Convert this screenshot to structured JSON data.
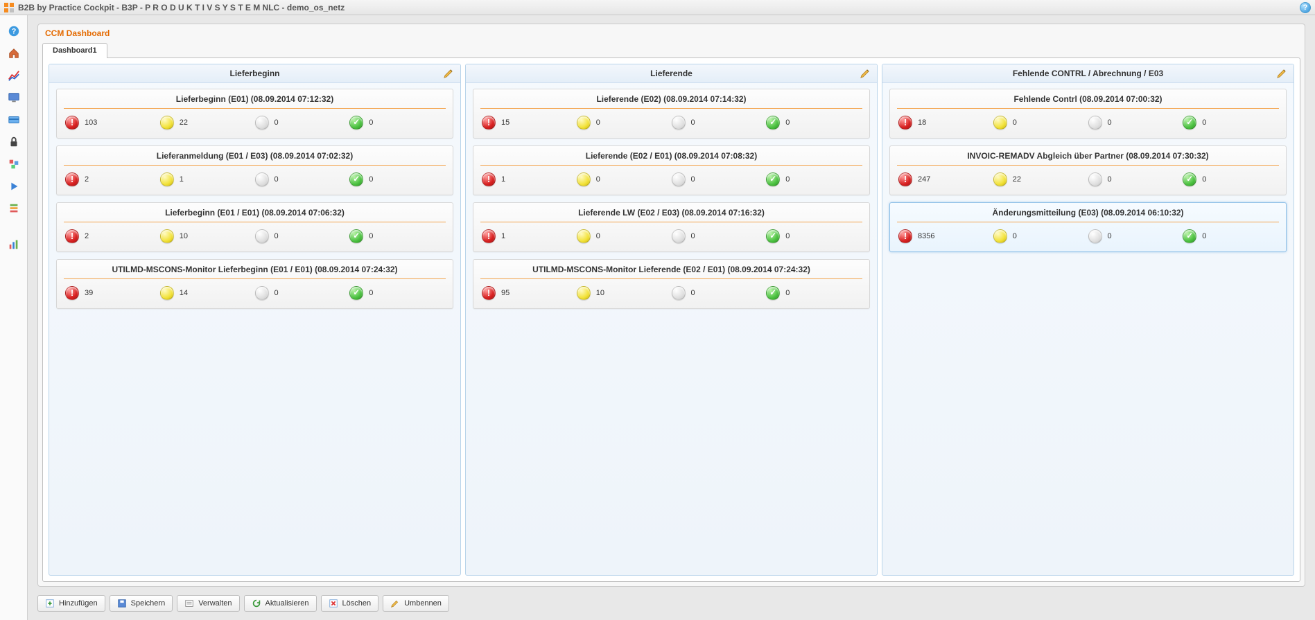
{
  "app_title": "B2B by Practice Cockpit - B3P - P R O D U K T I V S Y S T E M  NLC - demo_os_netz",
  "panel_title": "CCM Dashboard",
  "tab_label": "Dashboard1",
  "columns": [
    {
      "title": "Lieferbeginn",
      "cards": [
        {
          "title": "Lieferbeginn (E01) (08.09.2014 07:12:32)",
          "red": 103,
          "yellow": 22,
          "gray": 0,
          "green": 0,
          "selected": false
        },
        {
          "title": "Lieferanmeldung (E01 / E03) (08.09.2014 07:02:32)",
          "red": 2,
          "yellow": 1,
          "gray": 0,
          "green": 0,
          "selected": false
        },
        {
          "title": "Lieferbeginn (E01 / E01) (08.09.2014 07:06:32)",
          "red": 2,
          "yellow": 10,
          "gray": 0,
          "green": 0,
          "selected": false
        },
        {
          "title": "UTILMD-MSCONS-Monitor Lieferbeginn (E01 / E01) (08.09.2014 07:24:32)",
          "red": 39,
          "yellow": 14,
          "gray": 0,
          "green": 0,
          "selected": false
        }
      ]
    },
    {
      "title": "Lieferende",
      "cards": [
        {
          "title": "Lieferende (E02) (08.09.2014 07:14:32)",
          "red": 15,
          "yellow": 0,
          "gray": 0,
          "green": 0,
          "selected": false
        },
        {
          "title": "Lieferende (E02 / E01) (08.09.2014 07:08:32)",
          "red": 1,
          "yellow": 0,
          "gray": 0,
          "green": 0,
          "selected": false
        },
        {
          "title": "Lieferende LW (E02 / E03) (08.09.2014 07:16:32)",
          "red": 1,
          "yellow": 0,
          "gray": 0,
          "green": 0,
          "selected": false
        },
        {
          "title": "UTILMD-MSCONS-Monitor Lieferende (E02 / E01) (08.09.2014 07:24:32)",
          "red": 95,
          "yellow": 10,
          "gray": 0,
          "green": 0,
          "selected": false
        }
      ]
    },
    {
      "title": "Fehlende CONTRL / Abrechnung / E03",
      "cards": [
        {
          "title": "Fehlende Contrl (08.09.2014 07:00:32)",
          "red": 18,
          "yellow": 0,
          "gray": 0,
          "green": 0,
          "selected": false
        },
        {
          "title": "INVOIC-REMADV Abgleich über Partner (08.09.2014 07:30:32)",
          "red": 247,
          "yellow": 22,
          "gray": 0,
          "green": 0,
          "selected": false
        },
        {
          "title": "Änderungsmitteilung (E03) (08.09.2014 06:10:32)",
          "red": 8356,
          "yellow": 0,
          "gray": 0,
          "green": 0,
          "selected": true
        }
      ]
    }
  ],
  "toolbar": {
    "add": "Hinzufügen",
    "save": "Speichern",
    "manage": "Verwalten",
    "refresh": "Aktualisieren",
    "delete": "Löschen",
    "rename": "Umbennen"
  }
}
